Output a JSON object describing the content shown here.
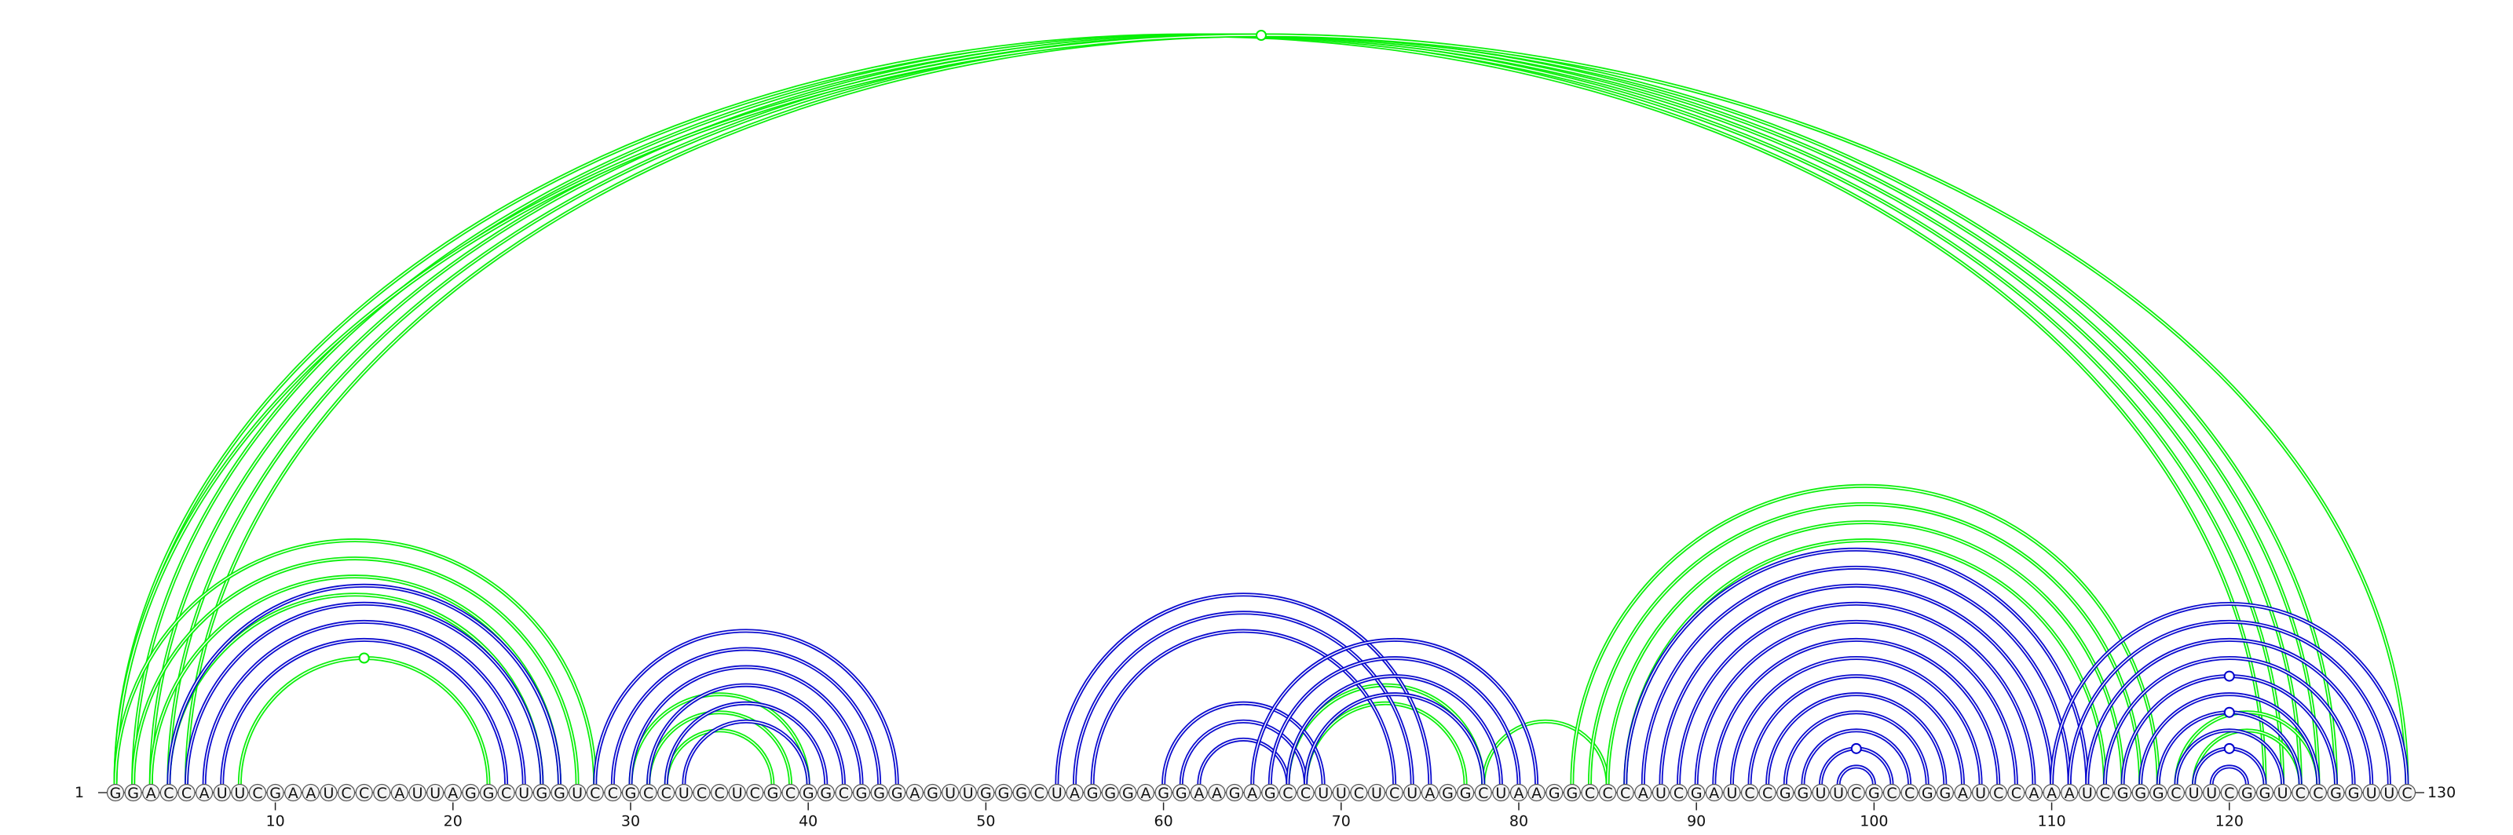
{
  "sequence": "GGACCAUUCGAAUCCCAUUAGGCUGGUCCGCCUCCUCGCGGCGGGAGUUGGGCUAGGGAGGAAGAGCCUUCUCUAGGCUAAGGCCCAUCGAUCCGGUUCGCCGGAUCCAAAUCGGGCUUCGGUCCGGUUC",
  "labels": {
    "start_index": "1",
    "end_index": "130"
  },
  "ticks": [
    "10",
    "20",
    "30",
    "40",
    "50",
    "60",
    "70",
    "80",
    "90",
    "100",
    "110",
    "120"
  ],
  "colors": {
    "green": "#00ee00",
    "blue": "#0000cc",
    "nucleotide_fill": "#f4f4f4",
    "nucleotide_stroke": "#555555",
    "backbone": "#333333"
  },
  "arcs": {
    "green": [
      [
        1,
        122
      ],
      [
        2,
        123
      ],
      [
        3,
        124
      ],
      [
        4,
        125
      ],
      [
        5,
        126
      ],
      [
        1,
        130
      ],
      [
        1,
        28
      ],
      [
        2,
        27
      ],
      [
        3,
        26
      ],
      [
        4,
        25
      ],
      [
        8,
        22
      ],
      [
        30,
        40
      ],
      [
        31,
        39
      ],
      [
        32,
        38
      ],
      [
        67,
        78
      ],
      [
        68,
        77
      ],
      [
        78,
        85
      ],
      [
        83,
        116
      ],
      [
        84,
        115
      ],
      [
        85,
        114
      ],
      [
        86,
        113
      ],
      [
        117,
        125
      ],
      [
        118,
        124
      ]
    ],
    "blue": [
      [
        4,
        26
      ],
      [
        5,
        25
      ],
      [
        6,
        24
      ],
      [
        7,
        23
      ],
      [
        28,
        45
      ],
      [
        29,
        44
      ],
      [
        30,
        43
      ],
      [
        31,
        42
      ],
      [
        32,
        41
      ],
      [
        33,
        40
      ],
      [
        54,
        75
      ],
      [
        55,
        74
      ],
      [
        56,
        73
      ],
      [
        60,
        69
      ],
      [
        61,
        68
      ],
      [
        62,
        67
      ],
      [
        65,
        81
      ],
      [
        66,
        80
      ],
      [
        67,
        79
      ],
      [
        68,
        78
      ],
      [
        86,
        112
      ],
      [
        87,
        111
      ],
      [
        88,
        110
      ],
      [
        89,
        109
      ],
      [
        90,
        108
      ],
      [
        91,
        107
      ],
      [
        92,
        106
      ],
      [
        93,
        105
      ],
      [
        94,
        104
      ],
      [
        95,
        103
      ],
      [
        96,
        102
      ],
      [
        97,
        101
      ],
      [
        98,
        100
      ],
      [
        110,
        130
      ],
      [
        111,
        129
      ],
      [
        112,
        128
      ],
      [
        113,
        127
      ],
      [
        114,
        126
      ],
      [
        115,
        125
      ],
      [
        116,
        124
      ],
      [
        117,
        123
      ],
      [
        118,
        122
      ],
      [
        119,
        121
      ]
    ]
  }
}
